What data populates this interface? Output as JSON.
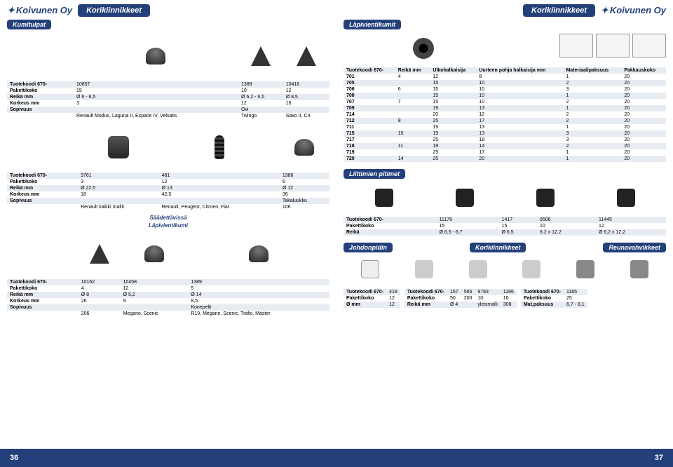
{
  "brand": "Koivunen Oy",
  "header_title": "Korikiinnikkeet",
  "sections": {
    "kumitulpat": "Kumitulpat",
    "lapivientikumit": "Läpivientikumit",
    "lapivientikumi": "Läpivientikumi",
    "saadettavissa": "Säädettävissä",
    "liittimien": "Liittimien pitimet",
    "johdonpidin": "Johdonpidin",
    "korikiinnikkeet": "Korikiinnikkeet",
    "reunavahvikkeet": "Reunavahvikkeet"
  },
  "rowhdr": {
    "tuote": "Tuotekoodi 670-",
    "paketti": "Pakettikoko",
    "reika_mm": "Reikä mm",
    "reika": "Reikä",
    "korkeus": "Korkeus mm",
    "sopivuus": "Sopivuus",
    "o_mm": "Ø mm",
    "mat": "Mat.paksuus"
  },
  "t1": {
    "c1": {
      "code": "10857",
      "pk": "15",
      "reika": "Ø 6 - 6,5",
      "kork": "3",
      "sop1": "Renault Modus, Laguna II, Espace IV, Velsatis",
      "sop2": ""
    },
    "c2": {
      "code": "1388",
      "pk": "10",
      "reika": "Ø 6,2 - 6,5",
      "kork": "12",
      "sop1": "Ovi",
      "sop2": "Twingo"
    },
    "c3": {
      "code": "10416",
      "pk": "12",
      "reika": "Ø 8,5",
      "kork": "16",
      "sop1": "",
      "sop2": "Saxo II, C4"
    }
  },
  "t2": {
    "c1": {
      "code": "9761",
      "pk": "3",
      "reika": "Ø 22,5",
      "kork": "18",
      "sop1": "",
      "sop2": "Renault kaikki mallit"
    },
    "c2": {
      "code": "481",
      "pk": "12",
      "reika": "Ø 13",
      "kork": "42,5",
      "sop1": "",
      "sop2": "Renault, Peugeot, Citroen, Fiat"
    },
    "c3": {
      "code": "1386",
      "pk": "6",
      "reika": "Ø 12",
      "kork": "36",
      "sop1": "Takaluukku",
      "sop2": "106"
    }
  },
  "t3": {
    "c1": {
      "code": "10162",
      "pk": "4",
      "reika": "Ø 8",
      "kork": "26",
      "sop1": "",
      "sop2": "206"
    },
    "c2": {
      "code": "10458",
      "pk": "12",
      "reika": "Ø 5,2",
      "kork": "9",
      "sop1": "",
      "sop2": "Megane, Scenic"
    },
    "c3": {
      "code": "1389",
      "pk": "5",
      "reika": "Ø 14",
      "kork": "8,5",
      "sop1": "Konepelti",
      "sop2": "R19, Megane, Scenic, Trafic, Master"
    }
  },
  "lap": {
    "hdr": {
      "c1": "Tuotekoodi 670-",
      "c2": "Reikä mm",
      "c3": "Ulkohalkaisija",
      "c4": "Uurteen pohja halkaisija mm",
      "c5": "Materiaalipaksuus",
      "c6": "Pakkauskoko"
    },
    "rows": [
      [
        "701",
        "4",
        "12",
        "8",
        "1",
        "20"
      ],
      [
        "705",
        "",
        "15",
        "10",
        "2",
        "20"
      ],
      [
        "706",
        "6",
        "15",
        "10",
        "3",
        "20"
      ],
      [
        "708",
        "",
        "15",
        "10",
        "1",
        "20"
      ],
      [
        "707",
        "7",
        "15",
        "10",
        "2",
        "20"
      ],
      [
        "709",
        "",
        "19",
        "13",
        "1",
        "20"
      ],
      [
        "714",
        "",
        "20",
        "12",
        "2",
        "20"
      ],
      [
        "712",
        "8",
        "25",
        "17",
        "2",
        "20"
      ],
      [
        "711",
        "",
        "19",
        "13",
        "1",
        "20"
      ],
      [
        "715",
        "10",
        "19",
        "13",
        "3",
        "20"
      ],
      [
        "717",
        "",
        "25",
        "18",
        "3",
        "20"
      ],
      [
        "718",
        "11",
        "19",
        "14",
        "2",
        "20"
      ],
      [
        "719",
        "",
        "25",
        "17",
        "1",
        "20"
      ],
      [
        "720",
        "14",
        "25",
        "20",
        "1",
        "20"
      ]
    ]
  },
  "t4": {
    "c1": {
      "code": "11178",
      "pk": "15",
      "reika": "Ø 6,5 - 6,7"
    },
    "c2": {
      "code": "1417",
      "pk": "15",
      "reika": "Ø 6,5"
    },
    "c3": {
      "code": "9506",
      "pk": "10",
      "reika": "6,2 x 12,2"
    },
    "c4": {
      "code": "11445",
      "pk": "12",
      "reika": "Ø 6,2 x 12,2"
    }
  },
  "t5a": {
    "code": "418",
    "pk": "12",
    "omm": "12"
  },
  "t5b": {
    "c1": "157",
    "c2": "565",
    "c3": "9783",
    "c4": "1186",
    "pk1": "50",
    "pk2": "200",
    "pk3": "10",
    "pk4": "16",
    "r1": "Ø 4",
    "r2": "",
    "r3": "yleismalli",
    "r4": "308"
  },
  "t5c": {
    "code": "1185",
    "pk": "25",
    "mat": "6,7 - 8,1"
  },
  "page_left": "36",
  "page_right": "37"
}
